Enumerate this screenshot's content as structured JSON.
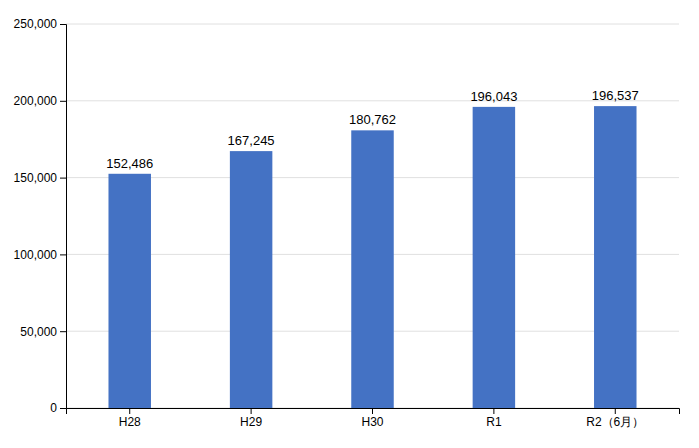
{
  "chart_data": {
    "type": "bar",
    "categories": [
      "H28",
      "H29",
      "H30",
      "R1",
      "R2（6月）"
    ],
    "values": [
      152486,
      167245,
      180762,
      196043,
      196537
    ],
    "value_labels": [
      "152,486",
      "167,245",
      "180,762",
      "196,043",
      "196,537"
    ],
    "data_labels": true,
    "color": "#4472C4",
    "ylim": [
      0,
      250000
    ],
    "yticks": [
      0,
      {
        "value": 50000,
        "label": "50,000"
      },
      {
        "value": 100000,
        "label": "100,000"
      },
      {
        "value": 150000,
        "label": "150,000"
      },
      {
        "value": 200000,
        "label": "200,000"
      },
      {
        "value": 250000,
        "label": "250,000"
      }
    ],
    "grid": true
  }
}
